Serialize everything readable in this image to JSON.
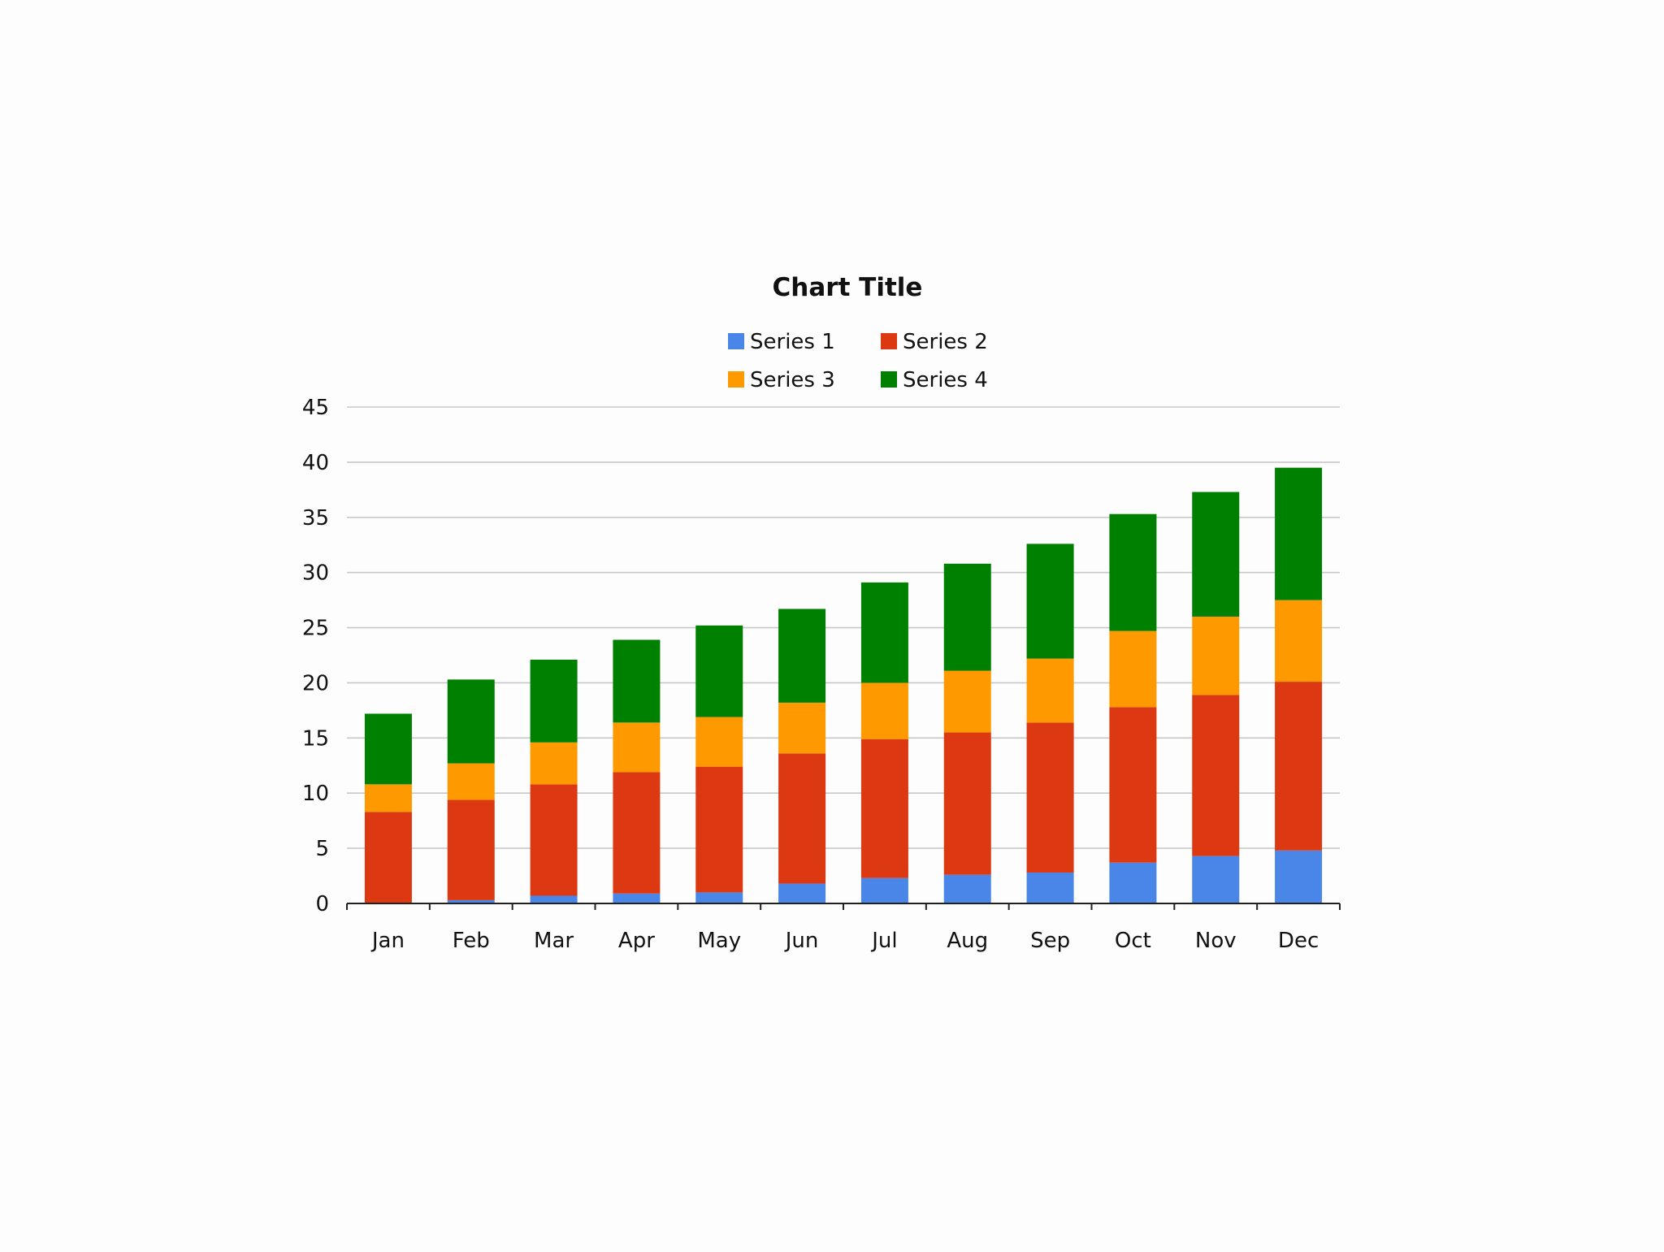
{
  "chart_data": {
    "type": "bar",
    "stacked": true,
    "title": "Chart Title",
    "xlabel": "",
    "ylabel": "",
    "ylim": [
      0,
      45
    ],
    "yticks": [
      0,
      5,
      10,
      15,
      20,
      25,
      30,
      35,
      40,
      45
    ],
    "grid": true,
    "legend_position": "top",
    "categories": [
      "Jan",
      "Feb",
      "Mar",
      "Apr",
      "May",
      "Jun",
      "Jul",
      "Aug",
      "Sep",
      "Oct",
      "Nov",
      "Dec"
    ],
    "series": [
      {
        "name": "Series 1",
        "color": "#4a86e8",
        "values": [
          0,
          0.3,
          0.7,
          0.9,
          1.0,
          1.8,
          2.3,
          2.6,
          2.8,
          3.7,
          4.3,
          4.8
        ]
      },
      {
        "name": "Series 2",
        "color": "#dc3912",
        "values": [
          8.3,
          9.1,
          10.1,
          11.0,
          11.4,
          11.8,
          12.6,
          12.9,
          13.6,
          14.1,
          14.6,
          15.3
        ]
      },
      {
        "name": "Series 3",
        "color": "#ff9900",
        "values": [
          2.5,
          3.3,
          3.8,
          4.5,
          4.5,
          4.6,
          5.1,
          5.6,
          5.8,
          6.9,
          7.1,
          7.4
        ]
      },
      {
        "name": "Series 4",
        "color": "#008000",
        "values": [
          6.4,
          7.6,
          7.5,
          7.5,
          8.3,
          8.5,
          9.1,
          9.7,
          10.4,
          10.6,
          11.3,
          12.0
        ]
      }
    ]
  }
}
